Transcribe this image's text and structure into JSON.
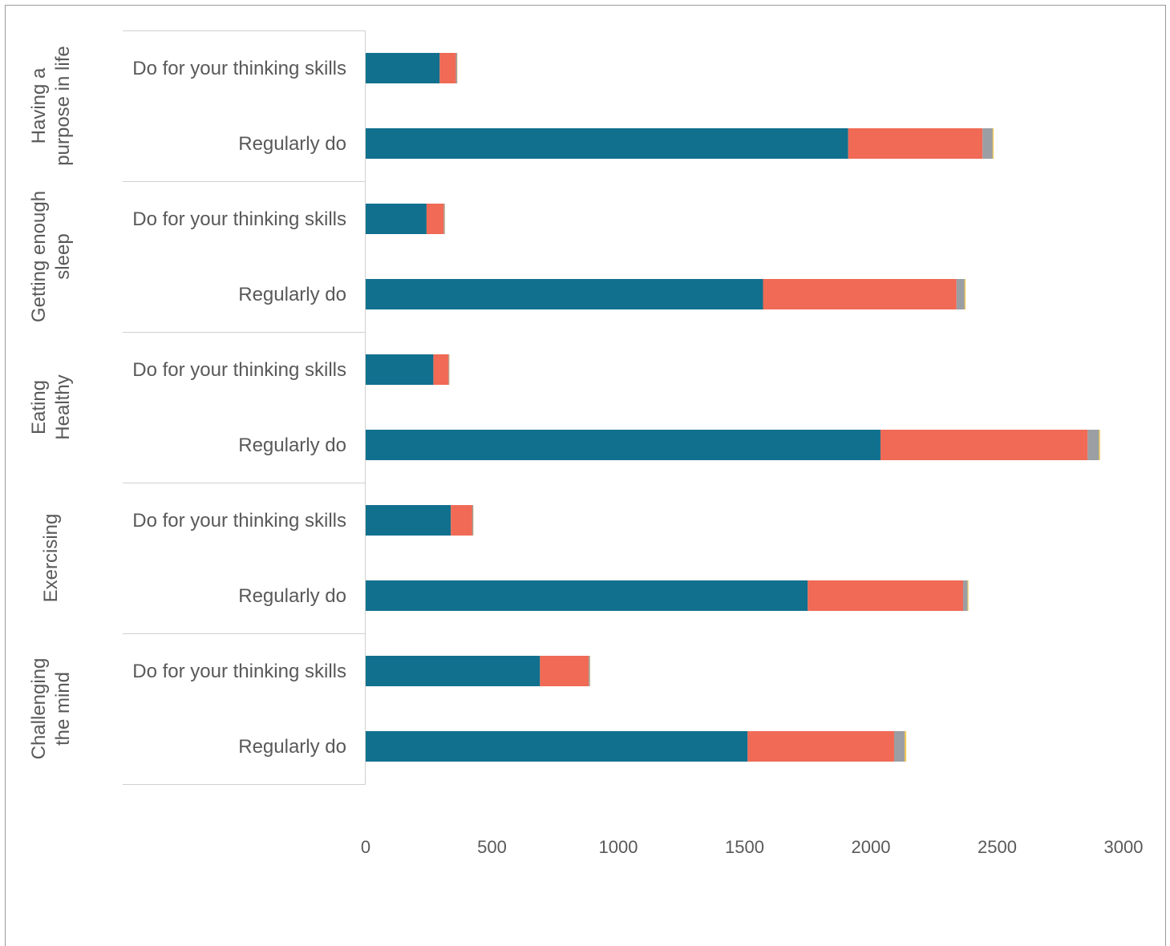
{
  "chart_data": {
    "type": "bar",
    "orientation": "horizontal",
    "stacked": true,
    "title": "",
    "xlabel": "",
    "ylabel": "",
    "xlim": [
      0,
      3100
    ],
    "xticks": [
      0,
      500,
      1000,
      1500,
      2000,
      2500,
      3000
    ],
    "legend": "none",
    "colors": [
      "#11708e",
      "#f06a55",
      "#9b9fa3",
      "#f2c94c"
    ],
    "groups": [
      {
        "label": "Having a purpose in life",
        "label_lines": [
          "Having a",
          "purpose in life"
        ],
        "rows": [
          {
            "label": "Do for your thinking skills",
            "values": [
              293,
              64,
              5,
              1
            ]
          },
          {
            "label": "Regularly do",
            "values": [
              1910,
              532,
              40,
              4
            ]
          }
        ]
      },
      {
        "label": "Getting enough sleep",
        "label_lines": [
          "Getting enough",
          "sleep"
        ],
        "rows": [
          {
            "label": "Do for your thinking skills",
            "values": [
              241,
              68,
              4,
              1
            ]
          },
          {
            "label": "Regularly do",
            "values": [
              1573,
              766,
              32,
              4
            ]
          }
        ]
      },
      {
        "label": "Eating Healthy",
        "label_lines": [
          "Eating",
          "Healthy"
        ],
        "rows": [
          {
            "label": "Do for your thinking skills",
            "values": [
              268,
              60,
              3,
              1
            ]
          },
          {
            "label": "Regularly do",
            "values": [
              2038,
              820,
              45,
              4
            ]
          }
        ]
      },
      {
        "label": "Exercising",
        "label_lines": [
          "Exercising"
        ],
        "rows": [
          {
            "label": "Do for your thinking skills",
            "values": [
              337,
              85,
              4,
              1
            ]
          },
          {
            "label": "Regularly do",
            "values": [
              1750,
              615,
              18,
              3
            ]
          }
        ]
      },
      {
        "label": "Challenging the mind",
        "label_lines": [
          "Challenging",
          "the mind"
        ],
        "rows": [
          {
            "label": "Do for your thinking skills",
            "values": [
              690,
              193,
              5,
              1
            ]
          },
          {
            "label": "Regularly do",
            "values": [
              1512,
              580,
              42,
              6
            ]
          }
        ]
      }
    ]
  }
}
